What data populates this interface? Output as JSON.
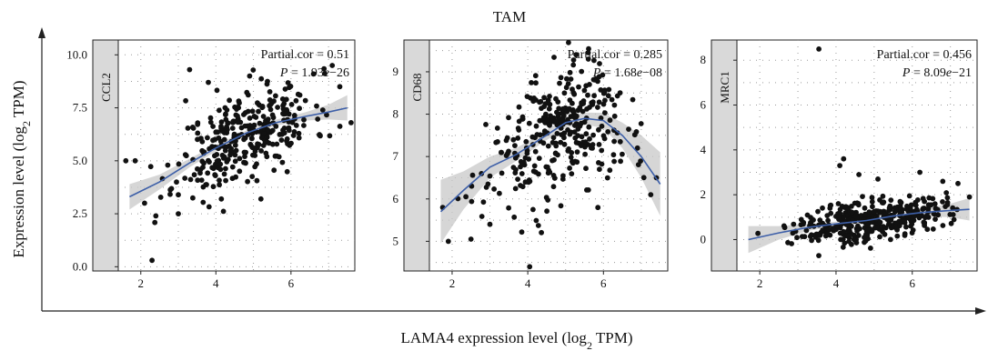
{
  "figure": {
    "title": "TAM",
    "xlabel_main": "LAMA4 expression level (log",
    "xlabel_sub": "2",
    "xlabel_tail": " TPM)",
    "ylabel_main": "Expression level (log",
    "ylabel_sub": "2",
    "ylabel_tail": " TPM)"
  },
  "colors": {
    "points": "#111111",
    "fit_line": "#3d5fa8",
    "ci_band": "#c8c8c8",
    "strip": "#d9d9d9",
    "grid": "#9a9a9a"
  },
  "chart_data": [
    {
      "type": "scatter",
      "strip_label": "CCL2",
      "annotation": {
        "cor_label": "Partial.cor = 0.51",
        "p_label": "P",
        "p_value": " = 1.93",
        "p_exp": "e",
        "p_tail": "−26"
      },
      "xlim": [
        1.4,
        7.7
      ],
      "ylim": [
        -0.2,
        10.7
      ],
      "xticks": [
        "2",
        "4",
        "6"
      ],
      "xtick_values": [
        2,
        4,
        6
      ],
      "yticks": [
        "0.0",
        "2.5",
        "5.0",
        "7.5",
        "10.0"
      ],
      "ytick_values": [
        0,
        2.5,
        5,
        7.5,
        10
      ],
      "fit": {
        "x": [
          1.7,
          2.5,
          3.3,
          4.0,
          4.8,
          5.6,
          6.4,
          7.0,
          7.5
        ],
        "y": [
          3.3,
          4.0,
          4.9,
          5.6,
          6.3,
          6.8,
          7.1,
          7.3,
          7.5
        ]
      },
      "ci_halfwidth": [
        0.6,
        0.35,
        0.2,
        0.15,
        0.12,
        0.14,
        0.2,
        0.35,
        0.6
      ],
      "points": {
        "n": 330,
        "x_center": 4.8,
        "x_spread": 0.9,
        "noise": 1.05,
        "seed": 11,
        "extra": [
          [
            1.6,
            5.0
          ],
          [
            1.85,
            5.0
          ],
          [
            2.3,
            0.3
          ],
          [
            2.1,
            3.0
          ],
          [
            2.4,
            2.4
          ],
          [
            3.3,
            9.3
          ],
          [
            3.8,
            8.7
          ],
          [
            4.9,
            9.0
          ],
          [
            6.6,
            9.1
          ],
          [
            7.1,
            9.5
          ],
          [
            7.3,
            8.5
          ],
          [
            7.6,
            6.8
          ],
          [
            5.2,
            3.2
          ],
          [
            3.0,
            2.5
          ]
        ]
      }
    },
    {
      "type": "scatter",
      "strip_label": "CD68",
      "annotation": {
        "cor_label": "Partial.cor = 0.285",
        "p_label": "P",
        "p_value": " = 1.68",
        "p_exp": "e",
        "p_tail": "−08"
      },
      "xlim": [
        1.4,
        7.7
      ],
      "ylim": [
        4.3,
        9.75
      ],
      "xticks": [
        "2",
        "4",
        "6"
      ],
      "xtick_values": [
        2,
        4,
        6
      ],
      "yticks": [
        "5",
        "6",
        "7",
        "8",
        "9"
      ],
      "ytick_values": [
        5,
        6,
        7,
        8,
        9
      ],
      "fit": {
        "x": [
          1.7,
          2.3,
          3.0,
          3.7,
          4.4,
          5.0,
          5.5,
          6.0,
          6.5,
          7.0,
          7.5
        ],
        "y": [
          5.7,
          6.2,
          6.75,
          7.05,
          7.45,
          7.8,
          7.9,
          7.85,
          7.5,
          7.0,
          6.35
        ]
      },
      "ci_halfwidth": [
        0.75,
        0.45,
        0.25,
        0.15,
        0.12,
        0.12,
        0.14,
        0.18,
        0.3,
        0.5,
        0.75
      ],
      "points": {
        "n": 330,
        "x_center": 4.8,
        "x_spread": 0.9,
        "noise": 0.75,
        "seed": 23,
        "extra": [
          [
            1.75,
            5.8
          ],
          [
            1.9,
            5.0
          ],
          [
            2.5,
            5.05
          ],
          [
            4.05,
            4.4
          ],
          [
            5.6,
            9.3
          ],
          [
            7.25,
            6.1
          ],
          [
            7.4,
            6.5
          ],
          [
            6.9,
            7.2
          ],
          [
            3.0,
            5.4
          ]
        ]
      }
    },
    {
      "type": "scatter",
      "strip_label": "MRC1",
      "annotation": {
        "cor_label": "Partial.cor = 0.456",
        "p_label": "P",
        "p_value": " = 8.09",
        "p_exp": "e",
        "p_tail": "−21"
      },
      "xlim": [
        1.4,
        7.7
      ],
      "ylim": [
        -1.4,
        8.9
      ],
      "xticks": [
        "2",
        "4",
        "6"
      ],
      "xtick_values": [
        2,
        4,
        6
      ],
      "yticks": [
        "0",
        "2",
        "4",
        "6",
        "8"
      ],
      "ytick_values": [
        0,
        2,
        4,
        6,
        8
      ],
      "fit": {
        "x": [
          1.7,
          2.5,
          3.3,
          4.0,
          4.8,
          5.5,
          6.2,
          7.0,
          7.5
        ],
        "y": [
          0.0,
          0.3,
          0.55,
          0.7,
          0.85,
          1.05,
          1.2,
          1.3,
          1.35
        ]
      },
      "ci_halfwidth": [
        0.6,
        0.3,
        0.15,
        0.1,
        0.08,
        0.1,
        0.15,
        0.3,
        0.5
      ],
      "points": {
        "n": 360,
        "x_center": 4.9,
        "x_spread": 0.95,
        "noise": 0.45,
        "seed": 37,
        "extra": [
          [
            3.55,
            8.5
          ],
          [
            4.2,
            3.6
          ],
          [
            4.1,
            3.3
          ],
          [
            4.6,
            2.9
          ],
          [
            5.1,
            2.7
          ],
          [
            6.2,
            3.0
          ],
          [
            6.8,
            2.6
          ],
          [
            7.2,
            2.5
          ],
          [
            7.5,
            1.9
          ]
        ]
      }
    }
  ]
}
